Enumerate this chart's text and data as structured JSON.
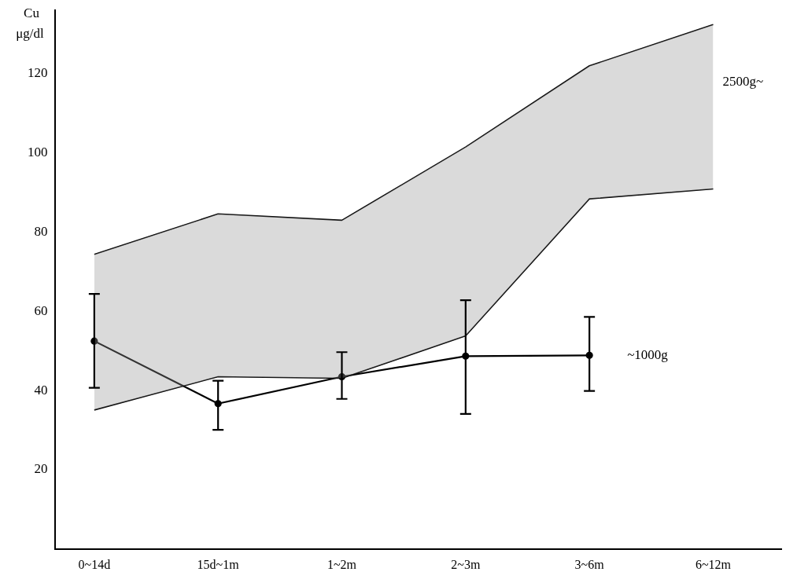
{
  "chart_data": {
    "type": "line",
    "ylabel": "Cu μg/dl",
    "categories": [
      "0~14d",
      "15d~1m",
      "1~2m",
      "2~3m",
      "3~6m",
      "6~12m"
    ],
    "ylim": [
      0,
      136
    ],
    "yticks": [
      20,
      40,
      60,
      80,
      100,
      120
    ],
    "grid": false,
    "legend": false,
    "series": [
      {
        "name": "2500g~",
        "type": "line",
        "color": "#000000",
        "values": [
          74.4,
          84.6,
          83,
          101.5,
          122,
          132.4
        ],
        "lower": [
          35.1,
          43.5,
          43.1,
          53.8,
          88.4,
          90.9
        ],
        "upper": [
          74.4,
          84.6,
          83,
          101.5,
          122,
          132.4
        ]
      },
      {
        "type": "line",
        "color": "#000000",
        "values": [
          35.1,
          43.5,
          43.1,
          53.8,
          88.4,
          90.9
        ]
      },
      {
        "name": "~1000g",
        "type": "line",
        "color": "#000000",
        "marker": "circle",
        "values": [
          52.5,
          36.7,
          43.5,
          48.7,
          48.9,
          null
        ],
        "errors": [
          [
            40.7,
            64.4
          ],
          [
            30.1,
            42.5
          ],
          [
            37.9,
            49.7
          ],
          [
            34.1,
            62.8
          ],
          [
            39.9,
            58.6
          ],
          null
        ]
      }
    ]
  }
}
